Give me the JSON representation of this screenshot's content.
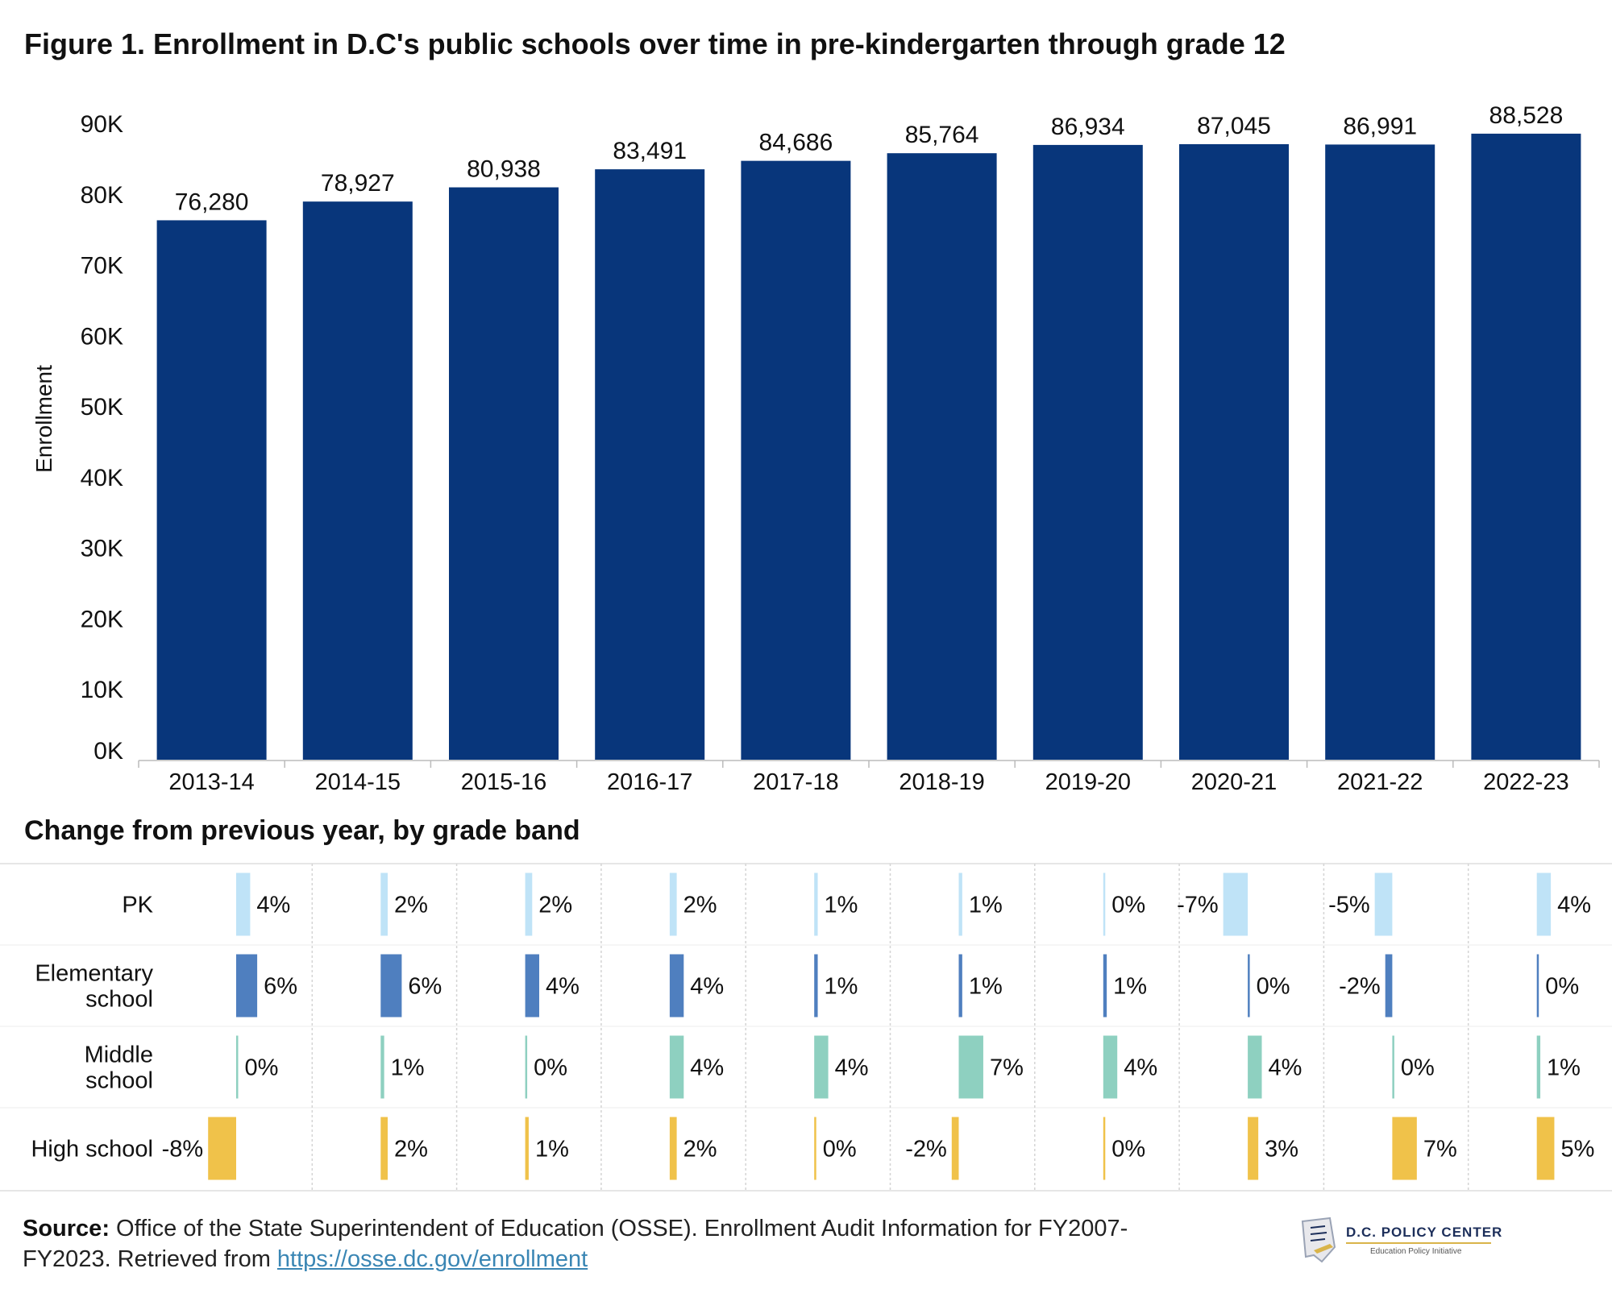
{
  "title": "Figure 1. Enrollment in D.C's public schools over time in pre-kindergarten through grade 12",
  "subtitle": "Change from previous year, by grade band",
  "source": {
    "label": "Source:",
    "text": " Office of the State Superintendent of Education (OSSE). Enrollment Audit Information for FY2007-FY2023. Retrieved from ",
    "link": "https://osse.dc.gov/enrollment"
  },
  "logo": {
    "name": "D.C. POLICY CENTER",
    "tagline": "Education Policy Initiative"
  },
  "chart_data": [
    {
      "type": "bar",
      "categories": [
        "2013-14",
        "2014-15",
        "2015-16",
        "2016-17",
        "2017-18",
        "2018-19",
        "2019-20",
        "2020-21",
        "2021-22",
        "2022-23"
      ],
      "values": [
        76280,
        78927,
        80938,
        83491,
        84686,
        85764,
        86934,
        87045,
        86991,
        88528
      ],
      "value_labels": [
        "76,280",
        "78,927",
        "80,938",
        "83,491",
        "84,686",
        "85,764",
        "86,934",
        "87,045",
        "86,991",
        "88,528"
      ],
      "ylabel": "Enrollment",
      "yticks": [
        "0K",
        "10K",
        "20K",
        "30K",
        "40K",
        "50K",
        "60K",
        "70K",
        "80K",
        "90K"
      ],
      "ylim": [
        0,
        90000
      ],
      "grid": false,
      "color": "#08367b"
    },
    {
      "type": "bar",
      "categories": [
        "2013-14",
        "2014-15",
        "2015-16",
        "2016-17",
        "2017-18",
        "2018-19",
        "2019-20",
        "2020-21",
        "2021-22",
        "2022-23"
      ],
      "series": [
        {
          "name": "PK",
          "color": "#bfe3f7",
          "values": [
            4,
            2,
            2,
            2,
            1,
            1,
            0,
            -7,
            -5,
            4
          ],
          "labels": [
            "4%",
            "2%",
            "2%",
            "2%",
            "1%",
            "1%",
            "0%",
            "-7%",
            "-5%",
            "4%"
          ]
        },
        {
          "name": "Elementary school",
          "color": "#4f7fbf",
          "values": [
            6,
            6,
            4,
            4,
            1,
            1,
            1,
            0,
            -2,
            0
          ],
          "labels": [
            "6%",
            "6%",
            "4%",
            "4%",
            "1%",
            "1%",
            "1%",
            "0%",
            "-2%",
            "0%"
          ]
        },
        {
          "name": "Middle school",
          "color": "#8ed0c0",
          "values": [
            0,
            1,
            0,
            4,
            4,
            7,
            4,
            4,
            0,
            1
          ],
          "labels": [
            "0%",
            "1%",
            "0%",
            "4%",
            "4%",
            "7%",
            "4%",
            "4%",
            "0%",
            "1%"
          ]
        },
        {
          "name": "High school",
          "color": "#f0c24a",
          "values": [
            -8,
            2,
            1,
            2,
            0,
            -2,
            0,
            3,
            7,
            5
          ],
          "labels": [
            "-8%",
            "2%",
            "1%",
            "2%",
            "0%",
            "-2%",
            "0%",
            "3%",
            "7%",
            "5%"
          ]
        }
      ],
      "row_labels": [
        [
          "PK"
        ],
        [
          "Elementary",
          "school"
        ],
        [
          "Middle",
          "school"
        ],
        [
          "High school"
        ]
      ],
      "unit": "%"
    }
  ]
}
